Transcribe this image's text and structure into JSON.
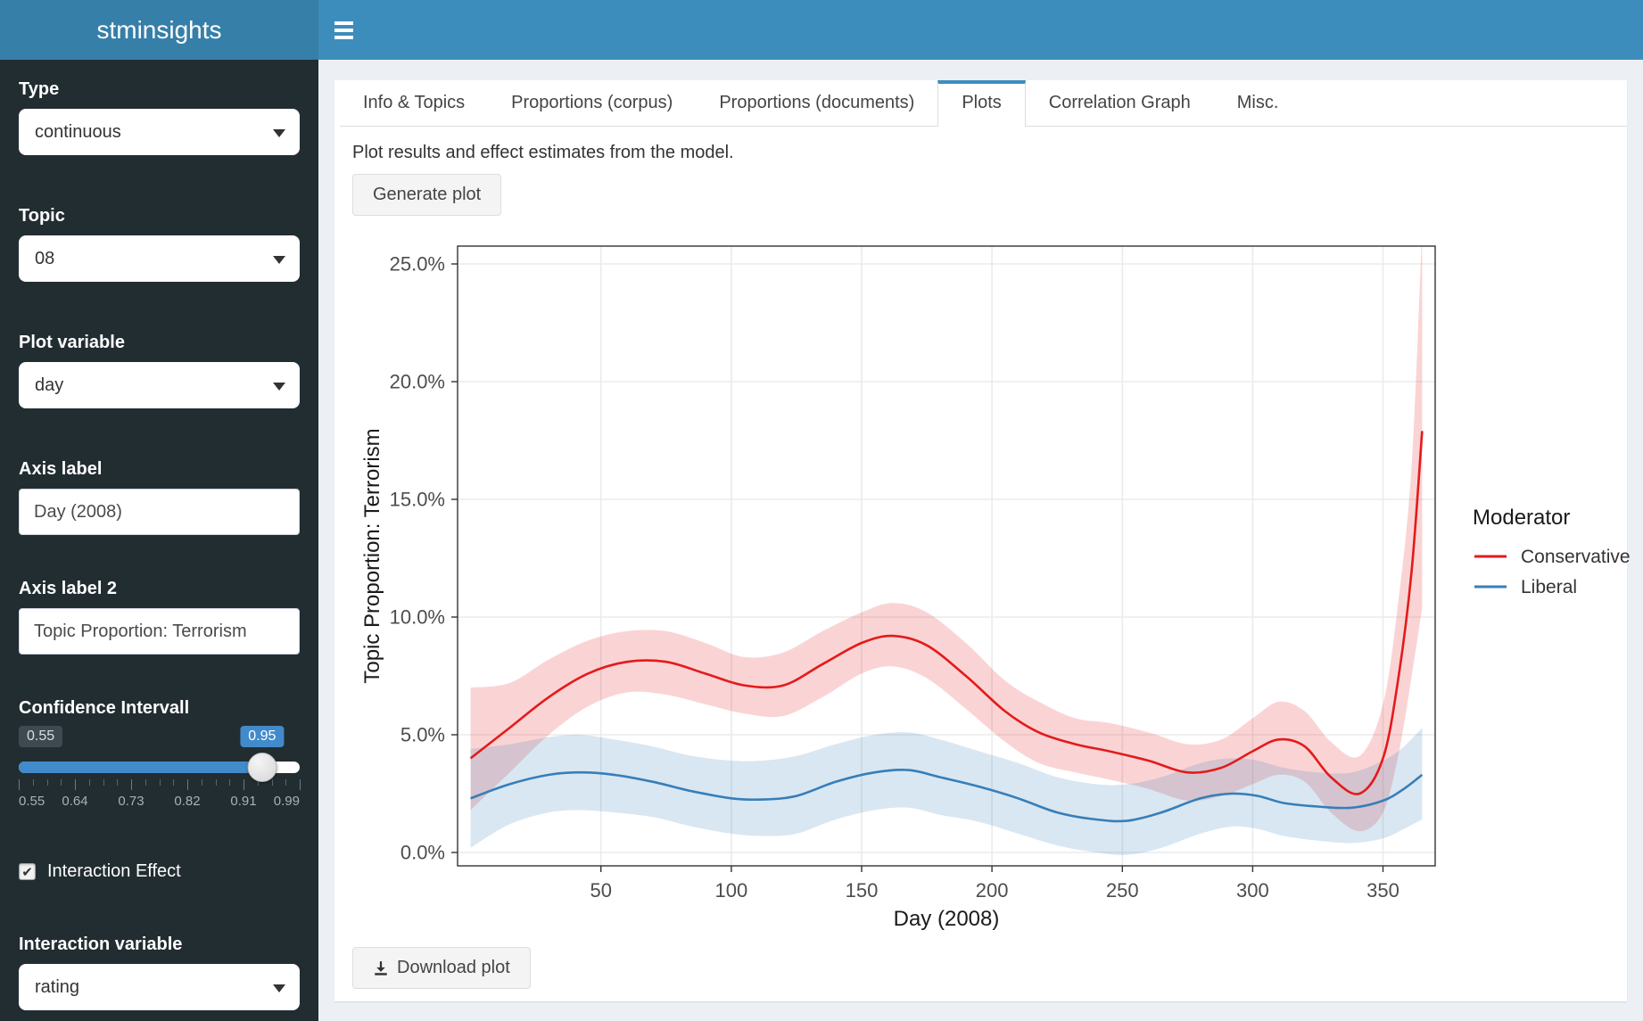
{
  "colors": {
    "navbar": "#3c8dbc",
    "logo_bg": "#367fa9",
    "sidebar_bg": "#222d32",
    "slider_accent": "#428bca",
    "conservative": "#e41a1c",
    "liberal": "#377eb8"
  },
  "header": {
    "app_title": "stminsights"
  },
  "sidebar": {
    "type": {
      "label": "Type",
      "value": "continuous"
    },
    "topic": {
      "label": "Topic",
      "value": "08"
    },
    "plot_variable": {
      "label": "Plot variable",
      "value": "day"
    },
    "axis_label": {
      "label": "Axis label",
      "value": "Day (2008)"
    },
    "axis_label_2": {
      "label": "Axis label 2",
      "value": "Topic Proportion: Terrorism"
    },
    "confidence_interval": {
      "label": "Confidence Intervall",
      "min": 0.55,
      "max": 0.99,
      "value": 0.95,
      "min_label": "0.55",
      "value_label": "0.95",
      "grid_labels": [
        "0.55",
        "0.64",
        "0.73",
        "0.82",
        "0.91",
        "0.99"
      ]
    },
    "interaction_effect": {
      "label": "Interaction Effect",
      "checked": true
    },
    "interaction_variable": {
      "label": "Interaction variable",
      "value": "rating"
    }
  },
  "tabs": {
    "active_index": 3,
    "items": [
      {
        "label": "Info & Topics"
      },
      {
        "label": "Proportions (corpus)"
      },
      {
        "label": "Proportions (documents)"
      },
      {
        "label": "Plots"
      },
      {
        "label": "Correlation Graph"
      },
      {
        "label": "Misc."
      }
    ]
  },
  "content": {
    "description": "Plot results and effect estimates from the model.",
    "generate_button": "Generate plot",
    "download_button": "Download plot"
  },
  "chart_data": {
    "type": "line",
    "xlabel": "Day (2008)",
    "ylabel": "Topic Proportion:  Terrorism",
    "xlim": [
      -5,
      370
    ],
    "ylim": [
      -0.6,
      25.8
    ],
    "grid": true,
    "x_ticks": {
      "values": [
        50,
        100,
        150,
        200,
        250,
        300,
        350
      ],
      "labels": [
        "50",
        "100",
        "150",
        "200",
        "250",
        "300",
        "350"
      ]
    },
    "y_ticks": {
      "values": [
        0,
        5,
        10,
        15,
        20,
        25
      ],
      "labels": [
        "0.0%",
        "5.0%",
        "10.0%",
        "15.0%",
        "20.0%",
        "25.0%"
      ]
    },
    "legend": {
      "title": "Moderator",
      "position": "right",
      "entries": [
        {
          "label": "Conservative",
          "color": "#e41a1c"
        },
        {
          "label": "Liberal",
          "color": "#377eb8"
        }
      ]
    },
    "series": [
      {
        "name": "Conservative",
        "color": "#e41a1c",
        "x": [
          0,
          15,
          30,
          45,
          60,
          75,
          90,
          105,
          120,
          135,
          150,
          162,
          175,
          190,
          205,
          218,
          232,
          245,
          260,
          275,
          288,
          300,
          310,
          320,
          330,
          341,
          350,
          356,
          361,
          365
        ],
        "y": [
          4.0,
          5.3,
          6.6,
          7.6,
          8.1,
          8.1,
          7.6,
          7.1,
          7.1,
          8.0,
          8.9,
          9.2,
          8.8,
          7.5,
          6.0,
          5.1,
          4.6,
          4.3,
          3.9,
          3.4,
          3.6,
          4.3,
          4.8,
          4.5,
          3.2,
          2.5,
          4.0,
          7.5,
          12.0,
          17.9
        ],
        "ci_upper": [
          7.0,
          7.2,
          8.2,
          9.0,
          9.4,
          9.4,
          8.9,
          8.3,
          8.5,
          9.4,
          10.2,
          10.6,
          10.2,
          8.9,
          7.3,
          6.4,
          5.7,
          5.5,
          5.1,
          4.6,
          4.8,
          5.7,
          6.4,
          6.0,
          4.7,
          4.1,
          6.3,
          10.8,
          16.5,
          26.5
        ],
        "ci_lower": [
          1.8,
          3.4,
          5.0,
          6.2,
          6.8,
          6.7,
          6.3,
          5.9,
          5.8,
          6.6,
          7.6,
          7.9,
          7.4,
          6.1,
          4.7,
          3.8,
          3.4,
          3.1,
          2.7,
          2.2,
          2.4,
          2.9,
          3.3,
          3.0,
          1.7,
          0.9,
          1.7,
          4.2,
          7.5,
          10.4
        ]
      },
      {
        "name": "Liberal",
        "color": "#377eb8",
        "x": [
          0,
          15,
          30,
          42,
          55,
          70,
          85,
          100,
          112,
          125,
          140,
          155,
          168,
          180,
          195,
          210,
          225,
          240,
          252,
          265,
          280,
          292,
          302,
          312,
          325,
          338,
          350,
          358,
          365
        ],
        "y": [
          2.3,
          2.9,
          3.3,
          3.4,
          3.3,
          3.0,
          2.6,
          2.3,
          2.25,
          2.4,
          3.0,
          3.4,
          3.5,
          3.2,
          2.8,
          2.3,
          1.7,
          1.4,
          1.35,
          1.7,
          2.3,
          2.5,
          2.4,
          2.1,
          1.95,
          1.9,
          2.2,
          2.7,
          3.3
        ],
        "ci_upper": [
          4.4,
          4.6,
          4.9,
          5.0,
          4.8,
          4.5,
          4.1,
          3.9,
          3.9,
          4.1,
          4.6,
          5.0,
          5.1,
          4.8,
          4.3,
          3.8,
          3.2,
          2.9,
          2.9,
          3.2,
          3.8,
          4.0,
          3.9,
          3.6,
          3.4,
          3.4,
          3.9,
          4.5,
          5.3
        ],
        "ci_lower": [
          0.2,
          1.2,
          1.7,
          1.8,
          1.7,
          1.5,
          1.1,
          0.8,
          0.7,
          0.8,
          1.4,
          1.8,
          1.9,
          1.6,
          1.3,
          0.8,
          0.3,
          0.0,
          -0.1,
          0.2,
          0.8,
          1.1,
          1.0,
          0.7,
          0.5,
          0.4,
          0.6,
          1.0,
          1.4
        ]
      }
    ]
  }
}
